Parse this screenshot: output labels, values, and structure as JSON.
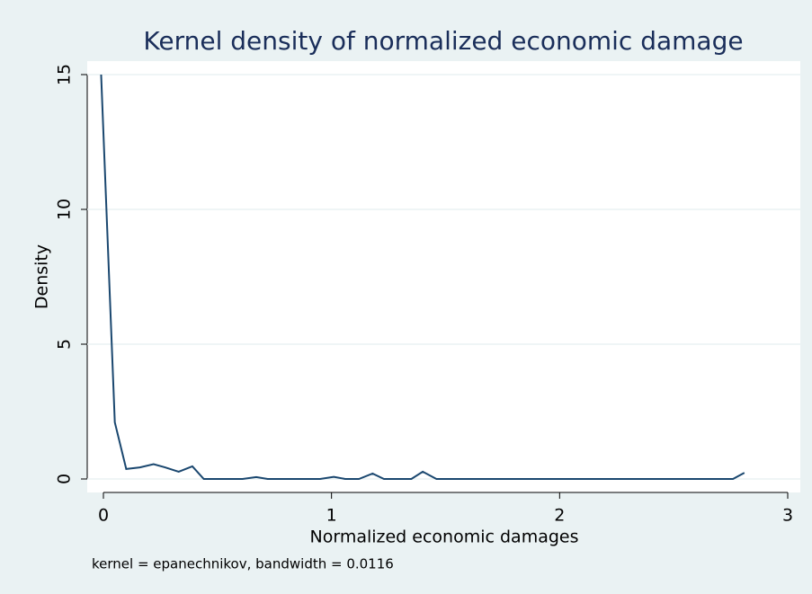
{
  "chart_data": {
    "type": "line",
    "title": "Kernel density of normalized economic damage",
    "x_label": "Normalized economic damages",
    "y_label": "Density",
    "note": "kernel = epanechnikov, bandwidth = 0.0116",
    "x": [
      -0.01,
      0.05,
      0.1,
      0.16,
      0.22,
      0.27,
      0.33,
      0.39,
      0.44,
      0.5,
      0.56,
      0.61,
      0.67,
      0.72,
      0.78,
      0.84,
      0.89,
      0.95,
      1.01,
      1.06,
      1.12,
      1.18,
      1.23,
      1.29,
      1.35,
      1.4,
      1.46,
      1.51,
      1.57,
      1.63,
      1.68,
      1.74,
      1.8,
      1.85,
      1.91,
      1.97,
      2.02,
      2.08,
      2.14,
      2.19,
      2.25,
      2.31,
      2.36,
      2.42,
      2.48,
      2.53,
      2.59,
      2.65,
      2.7,
      2.76,
      2.81
    ],
    "values": [
      15,
      2.1,
      0.37,
      0.43,
      0.55,
      0.43,
      0.27,
      0.47,
      0,
      0,
      0,
      0,
      0.07,
      0,
      0,
      0,
      0,
      0,
      0.08,
      0,
      0,
      0.2,
      0,
      0,
      0,
      0.27,
      0,
      0,
      0,
      0,
      0,
      0,
      0,
      0,
      0,
      0,
      0,
      0,
      0,
      0,
      0,
      0,
      0,
      0,
      0,
      0,
      0,
      0,
      0,
      0,
      0.23
    ],
    "color": "#1a476f",
    "xlim": [
      0,
      3
    ],
    "xticks": [
      0,
      1,
      2,
      3
    ],
    "ylim": [
      0,
      15
    ],
    "yticks": [
      0,
      5,
      10,
      15
    ],
    "grid": true
  }
}
